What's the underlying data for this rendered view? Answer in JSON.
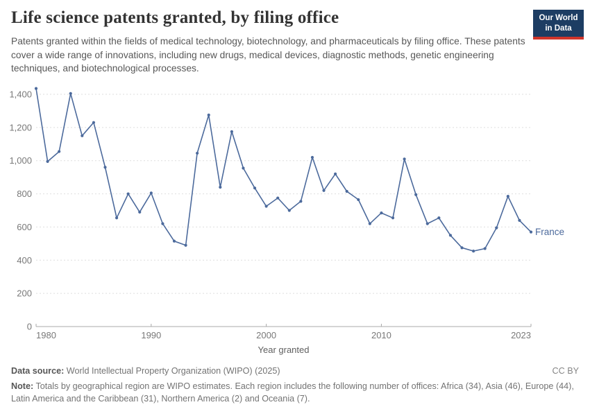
{
  "header": {
    "title": "Life science patents granted, by filing office",
    "subtitle": "Patents granted within the fields of medical technology, biotechnology, and pharmaceuticals by filing office. These patents cover a wide range of innovations, including new drugs, medical devices, diagnostic methods, genetic engineering techniques, and biotechnological processes.",
    "logo": {
      "line1": "Our World",
      "line2": "in Data",
      "bg_color": "#1d3d63",
      "accent_color": "#d0352b"
    }
  },
  "chart_data": {
    "type": "line",
    "title": "Life science patents granted, by filing office",
    "xlabel": "Year granted",
    "ylabel": "",
    "x_ticks": [
      1980,
      1990,
      2000,
      2010,
      2023
    ],
    "y_ticks": [
      0,
      200,
      400,
      600,
      800,
      1000,
      1200,
      1400
    ],
    "xlim": [
      1980,
      2023
    ],
    "ylim": [
      0,
      1400
    ],
    "grid": "horizontal-dashed",
    "legend_position": "end-of-line-label",
    "series": [
      {
        "name": "France",
        "color": "#4c6a9c",
        "x": [
          1980,
          1981,
          1982,
          1983,
          1984,
          1985,
          1986,
          1987,
          1988,
          1989,
          1990,
          1991,
          1992,
          1993,
          1994,
          1995,
          1996,
          1997,
          1998,
          1999,
          2000,
          2001,
          2002,
          2003,
          2004,
          2005,
          2006,
          2007,
          2008,
          2009,
          2010,
          2011,
          2012,
          2013,
          2014,
          2015,
          2016,
          2017,
          2018,
          2019,
          2020,
          2021,
          2022,
          2023
        ],
        "values": [
          1435,
          995,
          1055,
          1405,
          1150,
          1230,
          960,
          655,
          800,
          690,
          805,
          620,
          515,
          490,
          1045,
          1275,
          840,
          1175,
          955,
          835,
          725,
          775,
          700,
          755,
          1020,
          820,
          920,
          815,
          765,
          620,
          685,
          655,
          1010,
          795,
          620,
          655,
          550,
          475,
          455,
          470,
          595,
          785,
          640,
          570
        ]
      }
    ]
  },
  "footer": {
    "data_source_label": "Data source:",
    "data_source": " World Intellectual Property Organization (WIPO) (2025)",
    "license": "CC BY",
    "note_label": "Note:",
    "note": " Totals by geographical region are WIPO estimates. Each region includes the following number of offices: Africa (34), Asia (46), Europe (44), Latin America and the Caribbean (31), Northern America (2) and Oceania (7)."
  }
}
